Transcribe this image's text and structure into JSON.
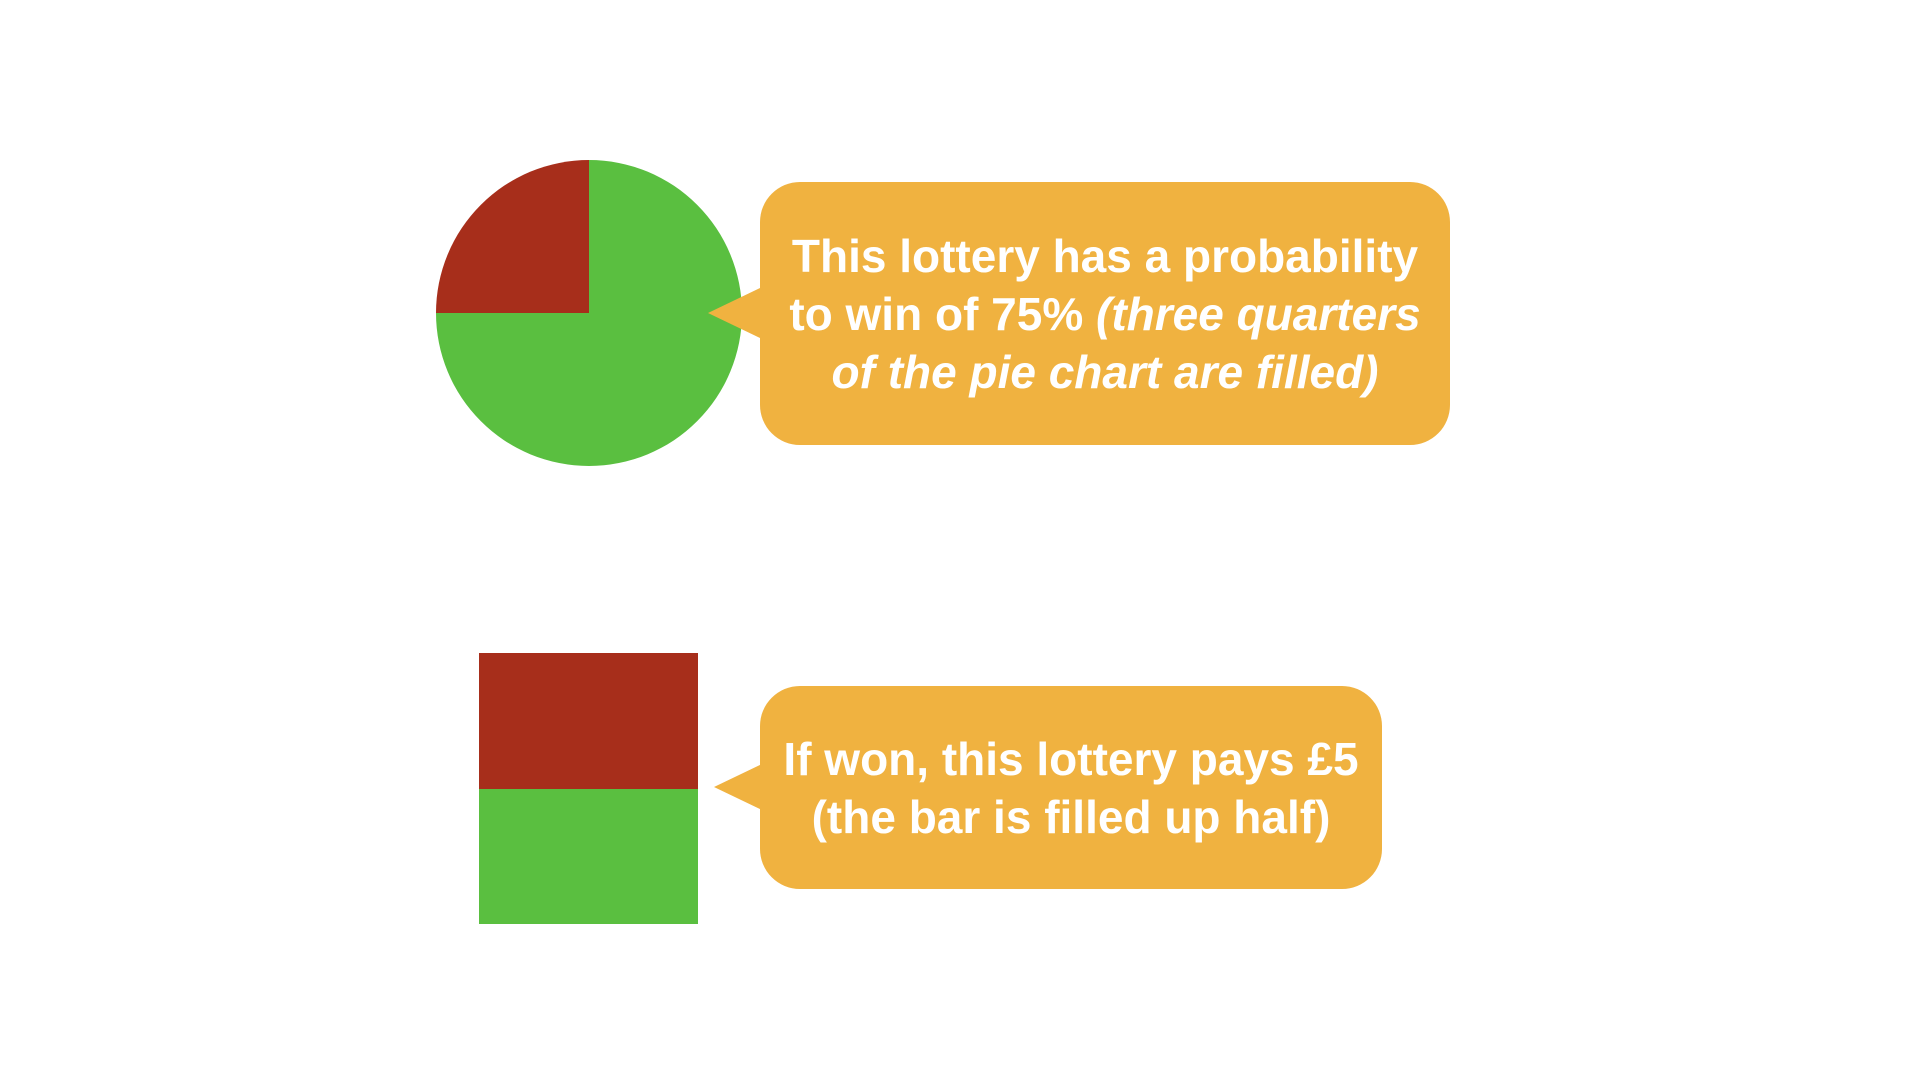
{
  "colors": {
    "filled": "#5abf40",
    "unfilled": "#a72e1b",
    "callout": "#f0b240",
    "callout_text": "#ffffff"
  },
  "pie_probability": {
    "win_fraction": 0.75
  },
  "payout_bar": {
    "fill_fraction": 0.5
  },
  "callout_probability": {
    "line1": "This lottery has a probability",
    "line2_plain": "to win of 75%",
    "line2_italic": "(three quarters",
    "line3_italic": "of the pie chart are filled)"
  },
  "callout_payout": {
    "line1": "If won, this lottery pays £5",
    "line2": "(the bar is filled up half)"
  }
}
